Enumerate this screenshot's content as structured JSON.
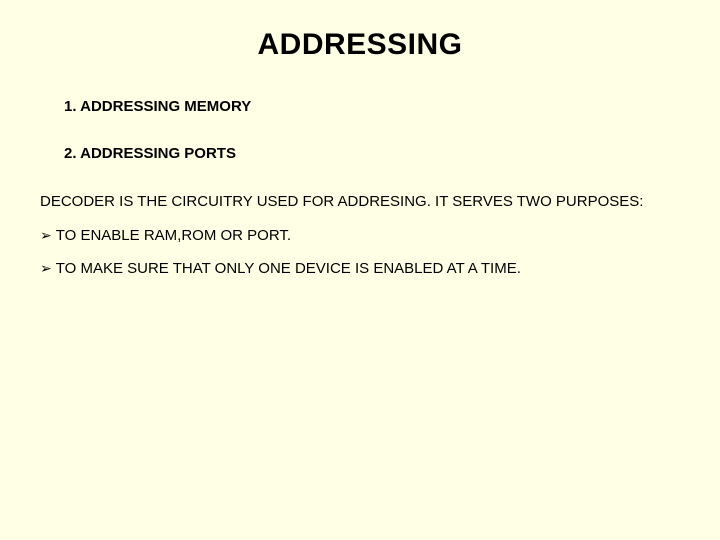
{
  "background_color": "#ffffe5",
  "text_color": "#000000",
  "font_family": "Arial, Helvetica, sans-serif",
  "title": {
    "text": "ADDRESSING",
    "fontsize": 30,
    "fontweight": "bold",
    "align": "center"
  },
  "subheadings": [
    {
      "text": "1. ADDRESSING MEMORY",
      "fontsize": 15,
      "fontweight": "bold"
    },
    {
      "text": "2. ADDRESSING PORTS",
      "fontsize": 15,
      "fontweight": "bold"
    }
  ],
  "body": {
    "text": "DECODER IS THE CIRCUITRY USED FOR ADDRESING. IT SERVES TWO PURPOSES:",
    "fontsize": 15
  },
  "bullets": [
    {
      "marker": "➢",
      "text": "TO ENABLE RAM,ROM OR PORT.",
      "fontsize": 15
    },
    {
      "marker": "➢",
      "text": "TO MAKE SURE THAT ONLY ONE DEVICE IS ENABLED AT A TIME.",
      "fontsize": 15
    }
  ]
}
